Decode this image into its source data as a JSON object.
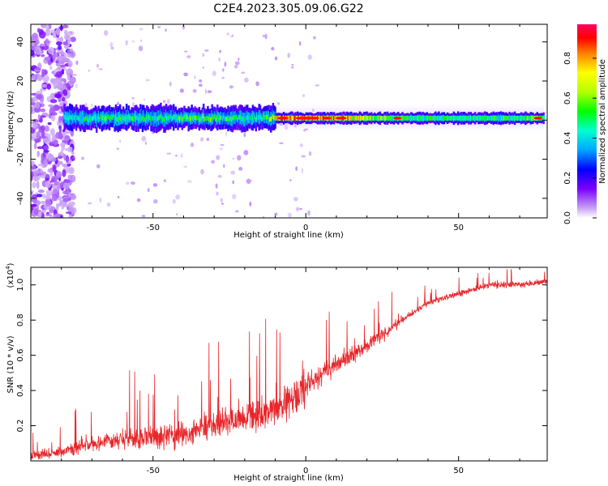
{
  "title": "C2E4.2023.305.09.06.G22",
  "chart_data": [
    {
      "type": "heatmap",
      "xlabel": "Height of straight line (km)",
      "ylabel": "Frequency (Hz)",
      "xlim": [
        -90,
        79
      ],
      "ylim": [
        -50,
        49
      ],
      "xticks": [
        -50,
        0,
        50
      ],
      "yticks": [
        -40,
        -20,
        0,
        20,
        40
      ],
      "colorbar": {
        "label": "Normalized spectral amplitude",
        "range": [
          0,
          0.97
        ],
        "ticks": [
          0.0,
          0.2,
          0.4,
          0.6,
          0.8
        ]
      },
      "ridge": {
        "frequency": 1,
        "points": [
          {
            "x": -79,
            "amp": 0.45
          },
          {
            "x": -65,
            "amp": 0.55
          },
          {
            "x": -50,
            "amp": 0.5
          },
          {
            "x": -40,
            "amp": 0.6
          },
          {
            "x": -25,
            "amp": 0.55
          },
          {
            "x": -15,
            "amp": 0.45
          },
          {
            "x": -8,
            "amp": 0.85
          },
          {
            "x": 0,
            "amp": 0.9
          },
          {
            "x": 10,
            "amp": 0.85
          },
          {
            "x": 30,
            "amp": 0.55
          },
          {
            "x": 50,
            "amp": 0.5
          },
          {
            "x": 78,
            "amp": 0.6
          }
        ]
      }
    },
    {
      "type": "line",
      "xlabel": "Height of straight line (km)",
      "ylabel": "SNR (10 * v/v)",
      "scale_label": "(x10",
      "scale_exp": "4",
      "scale_close": ")",
      "xlim": [
        -90,
        79
      ],
      "ylim": [
        0,
        1.1
      ],
      "xticks": [
        -50,
        0,
        50
      ],
      "yticks": [
        0.2,
        0.4,
        0.6,
        0.8,
        1.0
      ],
      "series": [
        {
          "color": "#e8252a",
          "trend": [
            [
              -90,
              0.03
            ],
            [
              -80,
              0.05
            ],
            [
              -70,
              0.1
            ],
            [
              -60,
              0.12
            ],
            [
              -50,
              0.13
            ],
            [
              -40,
              0.15
            ],
            [
              -30,
              0.2
            ],
            [
              -20,
              0.25
            ],
            [
              -10,
              0.28
            ],
            [
              0,
              0.42
            ],
            [
              10,
              0.55
            ],
            [
              20,
              0.65
            ],
            [
              30,
              0.78
            ],
            [
              40,
              0.9
            ],
            [
              50,
              0.95
            ],
            [
              60,
              1.0
            ],
            [
              70,
              1.0
            ],
            [
              79,
              1.02
            ]
          ]
        }
      ]
    }
  ]
}
